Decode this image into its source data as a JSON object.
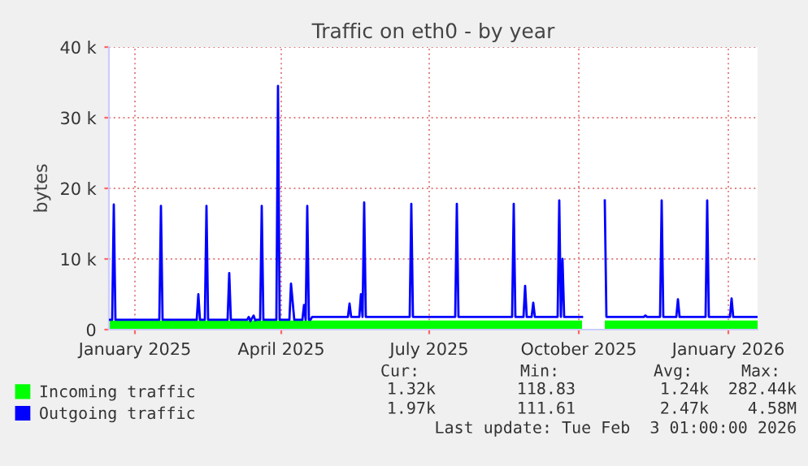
{
  "chart_data": {
    "type": "line",
    "title": "Traffic on eth0 - by year",
    "ylabel": "bytes",
    "xlim": [
      "2024-12-16",
      "2026-01-19"
    ],
    "xticks": [
      {
        "value": "2025-01-01",
        "label": "January 2025"
      },
      {
        "value": "2025-04-01",
        "label": "April 2025"
      },
      {
        "value": "2025-07-01",
        "label": "July 2025"
      },
      {
        "value": "2025-10-01",
        "label": "October 2025"
      },
      {
        "value": "2026-01-01",
        "label": "January 2026"
      }
    ],
    "ylim": [
      0,
      40000
    ],
    "yticks": [
      {
        "value": 0,
        "label": "0"
      },
      {
        "value": 10000,
        "label": "10 k"
      },
      {
        "value": 20000,
        "label": "20 k"
      },
      {
        "value": 30000,
        "label": "30 k"
      },
      {
        "value": 40000,
        "label": "40 k"
      }
    ],
    "grid": true,
    "legend": "bottom left",
    "series": [
      {
        "name": "Incoming traffic",
        "type": "area",
        "color": "#00ff00",
        "x": [
          "2024-12-16",
          "2025-10-03",
          "2025-10-04",
          "2025-10-16",
          "2025-10-17",
          "2026-01-19"
        ],
        "values": [
          1300,
          1300,
          null,
          null,
          1300,
          1300
        ]
      },
      {
        "name": "Outgoing traffic",
        "color": "#0000ff",
        "x": [
          "2024-12-16",
          "2024-12-18",
          "2024-12-19",
          "2024-12-20",
          "2025-01-16",
          "2025-01-17",
          "2025-01-18",
          "2025-02-08",
          "2025-02-09",
          "2025-02-10",
          "2025-02-13",
          "2025-02-14",
          "2025-02-15",
          "2025-02-27",
          "2025-02-28",
          "2025-03-01",
          "2025-03-11",
          "2025-03-12",
          "2025-03-13",
          "2025-03-15",
          "2025-03-16",
          "2025-03-17",
          "2025-03-19",
          "2025-03-20",
          "2025-03-21",
          "2025-03-29",
          "2025-03-30",
          "2025-03-31",
          "2025-04-06",
          "2025-04-07",
          "2025-04-09",
          "2025-04-14",
          "2025-04-15",
          "2025-04-16",
          "2025-04-17",
          "2025-04-18",
          "2025-04-19",
          "2025-04-20",
          "2025-05-12",
          "2025-05-13",
          "2025-05-14",
          "2025-05-19",
          "2025-05-20",
          "2025-05-21",
          "2025-05-22",
          "2025-05-23",
          "2025-06-19",
          "2025-06-20",
          "2025-06-21",
          "2025-07-17",
          "2025-07-18",
          "2025-07-19",
          "2025-08-21",
          "2025-08-22",
          "2025-08-23",
          "2025-08-28",
          "2025-08-29",
          "2025-08-30",
          "2025-09-02",
          "2025-09-03",
          "2025-09-04",
          "2025-09-18",
          "2025-09-19",
          "2025-09-20",
          "2025-09-21",
          "2025-09-22",
          "2025-10-03",
          "2025-10-04",
          "2025-10-16",
          "2025-10-17",
          "2025-10-18",
          "2025-11-10",
          "2025-11-11",
          "2025-11-12",
          "2025-11-20",
          "2025-11-21",
          "2025-11-22",
          "2025-11-30",
          "2025-12-01",
          "2025-12-02",
          "2025-12-18",
          "2025-12-19",
          "2025-12-20",
          "2026-01-02",
          "2026-01-03",
          "2026-01-04",
          "2026-01-19"
        ],
        "values": [
          1400,
          1400,
          17700,
          1400,
          1400,
          17500,
          1400,
          1400,
          5000,
          1400,
          1400,
          17500,
          1400,
          1400,
          8000,
          1400,
          1400,
          1800,
          1200,
          2000,
          1300,
          1400,
          1400,
          17500,
          1400,
          1400,
          34500,
          1400,
          1400,
          6500,
          1400,
          1400,
          3500,
          1400,
          17500,
          1400,
          1400,
          1800,
          1800,
          3700,
          1800,
          1800,
          5000,
          1800,
          18000,
          1800,
          1800,
          17800,
          1800,
          1800,
          17800,
          1800,
          1800,
          17800,
          1800,
          1800,
          6200,
          1800,
          1800,
          3800,
          1800,
          1800,
          18300,
          1800,
          10000,
          1800,
          1800,
          null,
          null,
          18300,
          1800,
          1800,
          2000,
          1800,
          1800,
          18300,
          1800,
          1800,
          4300,
          1800,
          1800,
          18300,
          1800,
          1800,
          4400,
          1800,
          1800
        ]
      }
    ],
    "annotations": [
      "Cur:",
      "Min:",
      "Avg:",
      "Max:",
      "1.32k",
      "118.83",
      "1.24k",
      "282.44k",
      "1.97k",
      "111.61",
      "2.47k",
      "4.58M",
      "Last update: Tue Feb  3 01:00:00 2026"
    ]
  }
}
